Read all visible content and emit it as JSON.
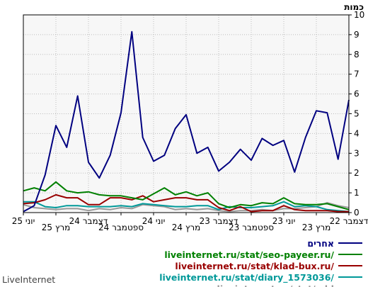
{
  "chart_data": {
    "type": "line",
    "ylabel": "כמות",
    "ylim": [
      0,
      10
    ],
    "yticks": [
      0,
      1,
      2,
      3,
      4,
      5,
      6,
      7,
      8,
      9,
      10
    ],
    "x_direction": "right-to-left",
    "xtick_labels": [
      "דצמבר 22",
      "מרץ 23",
      "יוני 23",
      "ספטמבר 23",
      "דצמבר 23",
      "מרץ 24",
      "יוני 24",
      "ספטמבר 24",
      "דצמבר 24",
      "מרץ 25",
      "יוני 25"
    ],
    "grid": true,
    "legend_position": "bottom",
    "series": [
      {
        "name": "אחרים",
        "color": "#000080",
        "values": [
          5.7,
          2.7,
          5.05,
          5.15,
          3.8,
          2.05,
          3.65,
          3.4,
          3.75,
          2.65,
          3.2,
          2.55,
          2.1,
          3.3,
          3.0,
          4.95,
          4.25,
          2.9,
          2.6,
          3.8,
          9.15,
          5.05,
          2.9,
          1.75,
          2.55,
          5.9,
          3.3,
          4.4,
          1.9,
          0.35,
          0.05
        ]
      },
      {
        "name": "liveinternet.ru/stat/seo-payeer.ru/",
        "color": "#008000",
        "values": [
          0.15,
          0.3,
          0.45,
          0.4,
          0.4,
          0.45,
          0.75,
          0.45,
          0.5,
          0.35,
          0.4,
          0.25,
          0.45,
          1.0,
          0.85,
          1.05,
          0.9,
          1.25,
          0.95,
          0.65,
          0.75,
          0.85,
          0.85,
          0.9,
          1.05,
          1.0,
          1.1,
          1.55,
          1.1,
          1.25,
          1.1
        ]
      },
      {
        "name": "liveinternet.ru/stat/klad-bux.ru/",
        "color": "#990000",
        "values": [
          0.05,
          0.05,
          0.1,
          0.1,
          0.1,
          0.15,
          0.35,
          0.1,
          0.1,
          0.05,
          0.3,
          0.1,
          0.25,
          0.65,
          0.65,
          0.75,
          0.75,
          0.65,
          0.55,
          0.85,
          0.65,
          0.75,
          0.75,
          0.4,
          0.4,
          0.75,
          0.75,
          0.9,
          0.65,
          0.5,
          0.45
        ]
      },
      {
        "name": "liveinternet.ru/stat/diary_1573036/",
        "color": "#009999",
        "values": [
          0.05,
          0.1,
          0.15,
          0.3,
          0.35,
          0.3,
          0.55,
          0.35,
          0.3,
          0.25,
          0.25,
          0.3,
          0.15,
          0.35,
          0.35,
          0.3,
          0.3,
          0.35,
          0.4,
          0.45,
          0.3,
          0.35,
          0.3,
          0.3,
          0.3,
          0.35,
          0.35,
          0.25,
          0.3,
          0.55,
          0.55
        ]
      },
      {
        "name": "liveinternet.ru/stat/add",
        "color": "#999999",
        "values": [
          0.25,
          0.35,
          0.5,
          0.3,
          0.25,
          0.2,
          0.2,
          0.1,
          0.15,
          0.1,
          0.1,
          0.05,
          0.1,
          0.2,
          0.15,
          0.2,
          0.15,
          0.3,
          0.35,
          0.4,
          0.2,
          0.25,
          0.15,
          0.2,
          0.1,
          0.2,
          0.2,
          0.15,
          0.2,
          0.25,
          0.4
        ]
      }
    ]
  },
  "brand": "LiveInternet"
}
